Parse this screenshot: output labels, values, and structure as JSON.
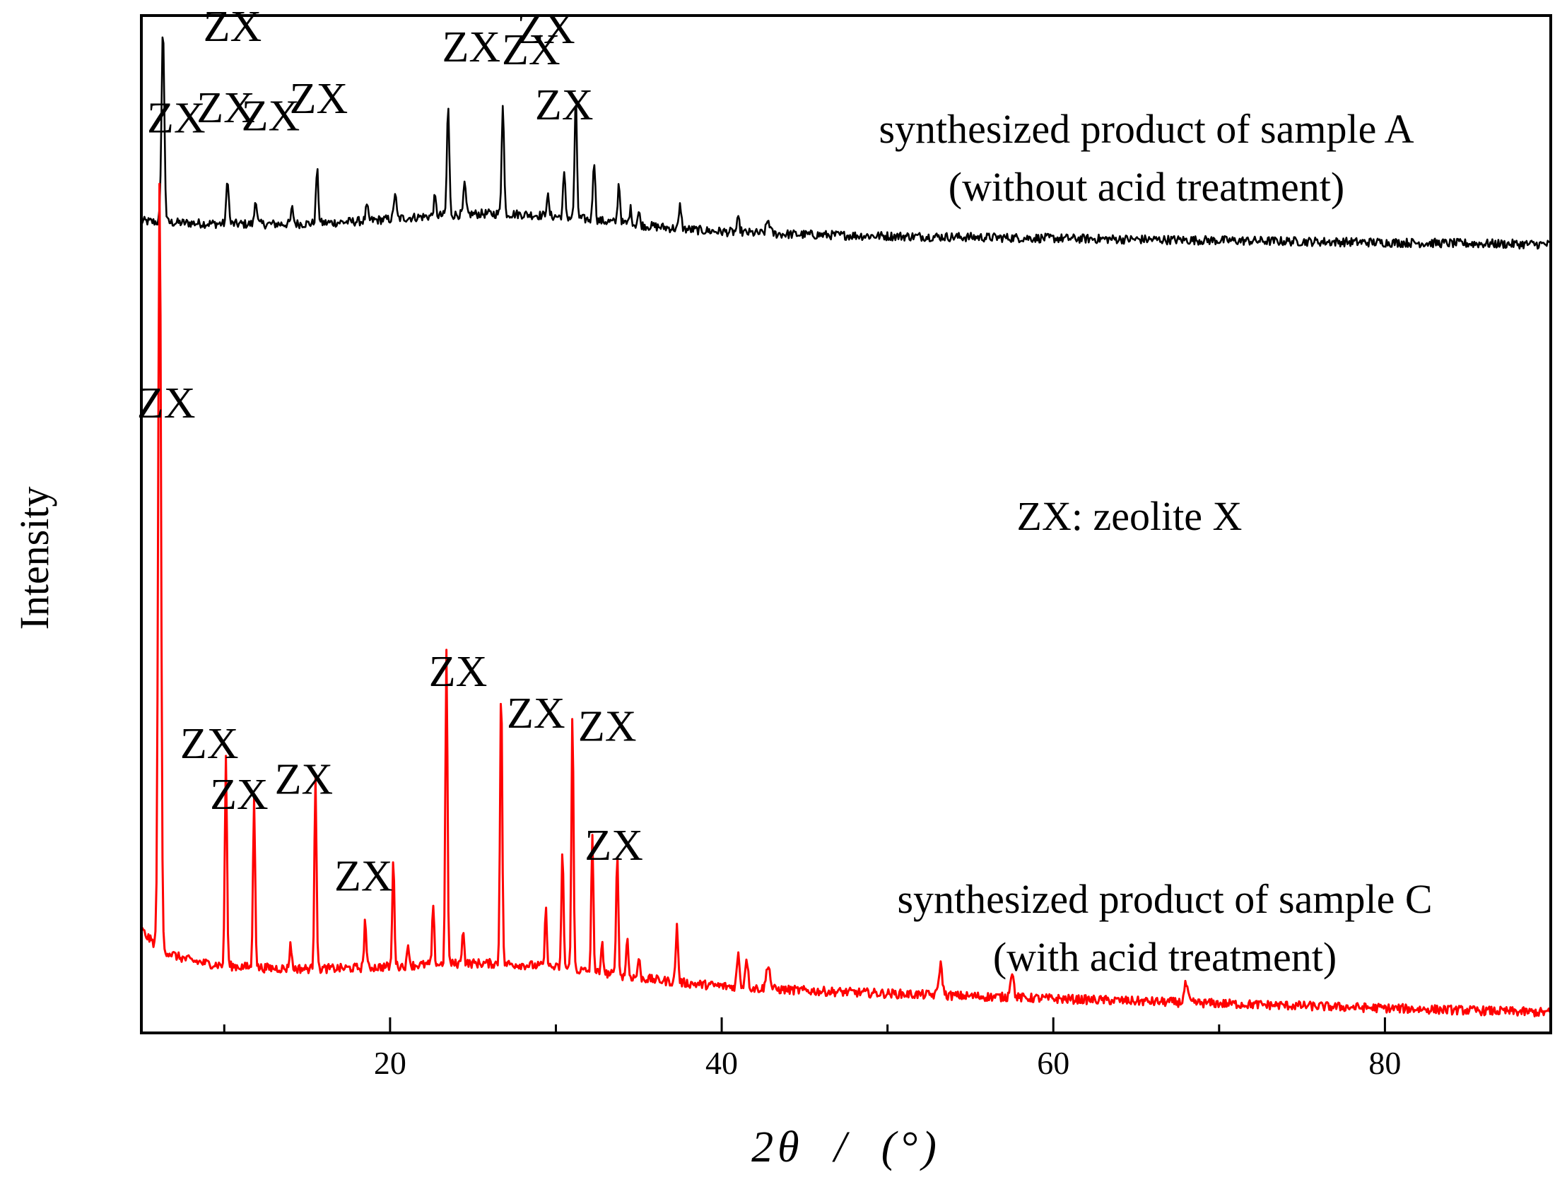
{
  "chart_data": {
    "type": "line",
    "title": "",
    "xlabel": "2θ / (°)",
    "ylabel": "Intensity",
    "xlim": [
      5,
      90
    ],
    "ylim": [
      0,
      100
    ],
    "x_ticks": [
      "20",
      "40",
      "60",
      "80"
    ],
    "x_tick_values": [
      20,
      40,
      60,
      80
    ],
    "minor_ticks": [
      10,
      30,
      50,
      70
    ],
    "y_ticks": [],
    "grid": false,
    "annotation_note": "ZX: zeolite X",
    "series": [
      {
        "name": "synthesized product of sample A",
        "label_lines": [
          "synthesized product of sample A",
          "(without acid treatment)"
        ],
        "color": "#000000",
        "baseline": 79.8,
        "baseline_end": 77.5,
        "noise": 0.45,
        "peaks": [
          {
            "x": 6.3,
            "h": 19.0,
            "w": 0.12
          },
          {
            "x": 10.2,
            "h": 4.5,
            "w": 0.1
          },
          {
            "x": 11.9,
            "h": 2.5,
            "w": 0.1
          },
          {
            "x": 14.1,
            "h": 1.5,
            "w": 0.1
          },
          {
            "x": 15.6,
            "h": 5.2,
            "w": 0.1
          },
          {
            "x": 18.6,
            "h": 1.4,
            "w": 0.1
          },
          {
            "x": 20.3,
            "h": 2.6,
            "w": 0.1
          },
          {
            "x": 22.7,
            "h": 1.8,
            "w": 0.1
          },
          {
            "x": 23.5,
            "h": 10.8,
            "w": 0.1
          },
          {
            "x": 24.5,
            "h": 3.0,
            "w": 0.1
          },
          {
            "x": 26.8,
            "h": 11.0,
            "w": 0.1
          },
          {
            "x": 29.5,
            "h": 2.0,
            "w": 0.1
          },
          {
            "x": 30.5,
            "h": 4.2,
            "w": 0.1
          },
          {
            "x": 31.2,
            "h": 11.5,
            "w": 0.1
          },
          {
            "x": 32.3,
            "h": 6.0,
            "w": 0.1
          },
          {
            "x": 33.8,
            "h": 3.9,
            "w": 0.1
          },
          {
            "x": 34.5,
            "h": 1.5,
            "w": 0.1
          },
          {
            "x": 35.0,
            "h": 1.2,
            "w": 0.1
          },
          {
            "x": 37.5,
            "h": 2.3,
            "w": 0.1
          },
          {
            "x": 41.0,
            "h": 1.2,
            "w": 0.12
          },
          {
            "x": 42.8,
            "h": 1.3,
            "w": 0.15
          }
        ]
      },
      {
        "name": "synthesized product of sample C",
        "label_lines": [
          "synthesized product of sample C",
          "(with acid treatment)"
        ],
        "color": "#ff0000",
        "baseline": 7.2,
        "baseline_end": 2.0,
        "noise": 0.45,
        "peaks": [
          {
            "x": 6.1,
            "h": 75.5,
            "w": 0.12
          },
          {
            "x": 10.1,
            "h": 20.5,
            "w": 0.09
          },
          {
            "x": 11.8,
            "h": 17.0,
            "w": 0.09
          },
          {
            "x": 14.0,
            "h": 2.5,
            "w": 0.09
          },
          {
            "x": 15.5,
            "h": 19.3,
            "w": 0.09
          },
          {
            "x": 18.5,
            "h": 4.8,
            "w": 0.09
          },
          {
            "x": 20.2,
            "h": 10.5,
            "w": 0.09
          },
          {
            "x": 21.1,
            "h": 2.0,
            "w": 0.09
          },
          {
            "x": 22.6,
            "h": 5.5,
            "w": 0.09
          },
          {
            "x": 23.4,
            "h": 30.5,
            "w": 0.09
          },
          {
            "x": 24.4,
            "h": 3.5,
            "w": 0.09
          },
          {
            "x": 26.7,
            "h": 28.0,
            "w": 0.09
          },
          {
            "x": 29.4,
            "h": 5.5,
            "w": 0.09
          },
          {
            "x": 30.4,
            "h": 11.5,
            "w": 0.09
          },
          {
            "x": 31.0,
            "h": 25.0,
            "w": 0.09
          },
          {
            "x": 32.2,
            "h": 13.2,
            "w": 0.09
          },
          {
            "x": 32.8,
            "h": 2.8,
            "w": 0.09
          },
          {
            "x": 33.7,
            "h": 12.5,
            "w": 0.09
          },
          {
            "x": 34.3,
            "h": 3.8,
            "w": 0.09
          },
          {
            "x": 35.0,
            "h": 2.0,
            "w": 0.09
          },
          {
            "x": 37.3,
            "h": 5.5,
            "w": 0.1
          },
          {
            "x": 41.0,
            "h": 3.2,
            "w": 0.12
          },
          {
            "x": 41.5,
            "h": 3.0,
            "w": 0.12
          },
          {
            "x": 42.8,
            "h": 2.5,
            "w": 0.15
          },
          {
            "x": 53.2,
            "h": 3.0,
            "w": 0.15
          },
          {
            "x": 57.5,
            "h": 2.5,
            "w": 0.15
          },
          {
            "x": 68.0,
            "h": 1.8,
            "w": 0.15
          }
        ]
      }
    ],
    "annotations": [
      {
        "text": "ZX",
        "x": 10.5,
        "y": 97.5
      },
      {
        "text": "ZX",
        "x": 7.1,
        "y": 88.5
      },
      {
        "text": "ZX",
        "x": 10.1,
        "y": 89.5
      },
      {
        "text": "ZX",
        "x": 12.8,
        "y": 88.7
      },
      {
        "text": "ZX",
        "x": 15.7,
        "y": 90.4
      },
      {
        "text": "ZX",
        "x": 24.9,
        "y": 95.5
      },
      {
        "text": "ZX",
        "x": 28.5,
        "y": 95.2
      },
      {
        "text": "ZX",
        "x": 29.4,
        "y": 97.3
      },
      {
        "text": "ZX",
        "x": 30.5,
        "y": 89.8
      },
      {
        "text": "ZX",
        "x": 6.5,
        "y": 60.5
      },
      {
        "text": "ZX",
        "x": 9.1,
        "y": 27.0
      },
      {
        "text": "ZX",
        "x": 10.9,
        "y": 22.0
      },
      {
        "text": "ZX",
        "x": 14.8,
        "y": 23.5
      },
      {
        "text": "ZX",
        "x": 18.4,
        "y": 14.0
      },
      {
        "text": "ZX",
        "x": 24.1,
        "y": 34.1
      },
      {
        "text": "ZX",
        "x": 28.8,
        "y": 30.0
      },
      {
        "text": "ZX",
        "x": 33.1,
        "y": 28.7
      },
      {
        "text": "ZX",
        "x": 33.5,
        "y": 17.0
      }
    ]
  }
}
